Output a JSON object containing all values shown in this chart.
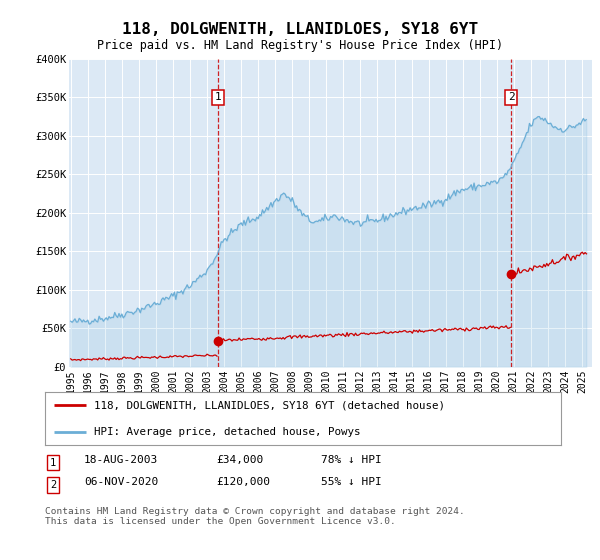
{
  "title": "118, DOLGWENITH, LLANIDLOES, SY18 6YT",
  "subtitle": "Price paid vs. HM Land Registry's House Price Index (HPI)",
  "fig_bg_color": "#ffffff",
  "plot_bg_color": "#dce9f5",
  "ylim": [
    0,
    400000
  ],
  "yticks": [
    0,
    50000,
    100000,
    150000,
    200000,
    250000,
    300000,
    350000,
    400000
  ],
  "ytick_labels": [
    "£0",
    "£50K",
    "£100K",
    "£150K",
    "£200K",
    "£250K",
    "£300K",
    "£350K",
    "£400K"
  ],
  "xlim_start": 1994.9,
  "xlim_end": 2025.6,
  "xticks": [
    1995,
    1996,
    1997,
    1998,
    1999,
    2000,
    2001,
    2002,
    2003,
    2004,
    2005,
    2006,
    2007,
    2008,
    2009,
    2010,
    2011,
    2012,
    2013,
    2014,
    2015,
    2016,
    2017,
    2018,
    2019,
    2020,
    2021,
    2022,
    2023,
    2024,
    2025
  ],
  "marker1_x": 2003.63,
  "marker2_x": 2020.85,
  "hpi_color": "#6baed6",
  "price_color": "#cc0000",
  "legend_line1": "118, DOLGWENITH, LLANIDLOES, SY18 6YT (detached house)",
  "legend_line2": "HPI: Average price, detached house, Powys",
  "sale1_date": "18-AUG-2003",
  "sale1_price": "£34,000",
  "sale1_hpi": "78% ↓ HPI",
  "sale2_date": "06-NOV-2020",
  "sale2_price": "£120,000",
  "sale2_hpi": "55% ↓ HPI",
  "footer": "Contains HM Land Registry data © Crown copyright and database right 2024.\nThis data is licensed under the Open Government Licence v3.0."
}
